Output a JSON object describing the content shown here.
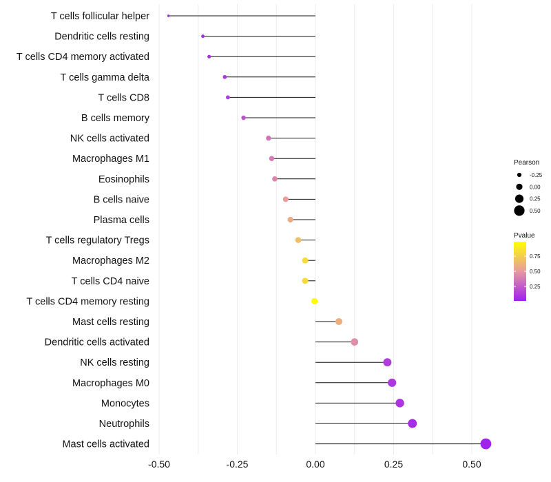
{
  "chart_data": {
    "type": "lollipop",
    "title": "",
    "xlabel": "",
    "ylabel": "",
    "xlim": [
      -0.5,
      0.58
    ],
    "x_ticks": [
      -0.5,
      -0.25,
      0.0,
      0.25,
      0.5
    ],
    "x_tick_labels": [
      "-0.50",
      "-0.25",
      "0.00",
      "0.25",
      "0.50"
    ],
    "grid": "vertical",
    "categories": [
      "T cells follicular helper",
      "Dendritic cells resting",
      "T cells CD4 memory activated",
      "T cells gamma delta",
      "T cells CD8",
      "B cells memory",
      "NK cells activated",
      "Macrophages M1",
      "Eosinophils",
      "B cells naive",
      "Plasma cells",
      "T cells regulatory  Tregs",
      "Macrophages M2",
      "T cells CD4 naive",
      "T cells CD4 memory resting",
      "Mast cells resting",
      "Dendritic cells activated",
      "NK cells resting",
      "Macrophages M0",
      "Monocytes",
      "Neutrophils",
      "Mast cells activated"
    ],
    "pearson": [
      -0.47,
      -0.36,
      -0.34,
      -0.29,
      -0.28,
      -0.23,
      -0.15,
      -0.14,
      -0.13,
      -0.095,
      -0.08,
      -0.055,
      -0.033,
      -0.033,
      -0.003,
      0.075,
      0.125,
      0.23,
      0.245,
      0.27,
      0.31,
      0.545
    ],
    "pvalue": [
      0.01,
      0.05,
      0.06,
      0.1,
      0.12,
      0.2,
      0.35,
      0.38,
      0.42,
      0.52,
      0.58,
      0.68,
      0.82,
      0.82,
      0.99,
      0.6,
      0.45,
      0.12,
      0.1,
      0.08,
      0.05,
      0.01
    ],
    "legend": {
      "size_title": "Pearson",
      "size_breaks": [
        -0.25,
        0.0,
        0.25,
        0.5
      ],
      "size_labels": [
        "-0.25",
        "0.00",
        "0.25",
        "0.50"
      ],
      "color_title": "Pvalue",
      "color_breaks": [
        0.25,
        0.5,
        0.75
      ],
      "color_labels": [
        "0.25",
        "0.50",
        "0.75"
      ],
      "color_low": "#a020f0",
      "color_mid": "#e89aa0",
      "color_high": "#ffff00",
      "position": "right"
    }
  }
}
